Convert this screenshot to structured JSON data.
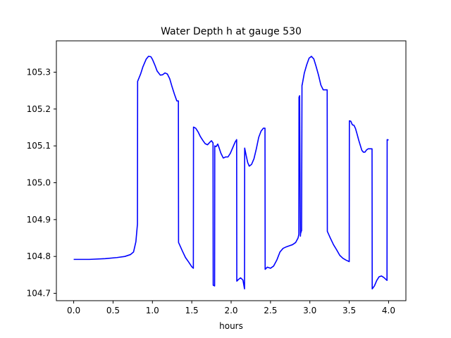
{
  "chart_data": {
    "type": "line",
    "title": "Water Depth h at gauge 530",
    "xlabel": "hours",
    "ylabel": "",
    "xlim": [
      -0.22,
      4.22
    ],
    "ylim": [
      104.68,
      105.385
    ],
    "xticks": [
      0.0,
      0.5,
      1.0,
      1.5,
      2.0,
      2.5,
      3.0,
      3.5,
      4.0
    ],
    "xtick_labels": [
      "0.0",
      "0.5",
      "1.0",
      "1.5",
      "2.0",
      "2.5",
      "3.0",
      "3.5",
      "4.0"
    ],
    "yticks": [
      104.7,
      104.8,
      104.9,
      105.0,
      105.1,
      105.2,
      105.3
    ],
    "ytick_labels": [
      "104.7",
      "104.8",
      "104.9",
      "105.0",
      "105.1",
      "105.2",
      "105.3"
    ],
    "grid": false,
    "series": [
      {
        "color": "#0000ff",
        "x": [
          0.0,
          0.2,
          0.4,
          0.55,
          0.65,
          0.72,
          0.76,
          0.79,
          0.81,
          0.812,
          0.85,
          0.88,
          0.92,
          0.95,
          0.98,
          1.0,
          1.03,
          1.06,
          1.1,
          1.13,
          1.16,
          1.19,
          1.22,
          1.25,
          1.28,
          1.31,
          1.33,
          1.332,
          1.38,
          1.42,
          1.46,
          1.5,
          1.52,
          1.522,
          1.55,
          1.58,
          1.61,
          1.64,
          1.67,
          1.7,
          1.73,
          1.75,
          1.77,
          1.772,
          1.79,
          1.792,
          1.81,
          1.83,
          1.85,
          1.87,
          1.9,
          1.93,
          1.96,
          1.99,
          2.02,
          2.05,
          2.07,
          2.072,
          2.09,
          2.12,
          2.15,
          2.17,
          2.172,
          2.19,
          2.21,
          2.23,
          2.26,
          2.29,
          2.32,
          2.35,
          2.38,
          2.41,
          2.43,
          2.432,
          2.46,
          2.5,
          2.54,
          2.58,
          2.62,
          2.66,
          2.7,
          2.74,
          2.78,
          2.82,
          2.85,
          2.86,
          2.862,
          2.87,
          2.88,
          2.882,
          2.89,
          2.895,
          2.9,
          2.902,
          2.93,
          2.96,
          2.99,
          3.02,
          3.05,
          3.08,
          3.11,
          3.14,
          3.17,
          3.2,
          3.22,
          3.222,
          3.26,
          3.3,
          3.34,
          3.38,
          3.42,
          3.46,
          3.5,
          3.502,
          3.52,
          3.54,
          3.56,
          3.58,
          3.6,
          3.62,
          3.64,
          3.66,
          3.68,
          3.7,
          3.72,
          3.74,
          3.76,
          3.78,
          3.79,
          3.792,
          3.82,
          3.85,
          3.88,
          3.91,
          3.94,
          3.97,
          3.98,
          3.982,
          4.0
        ],
        "y": [
          104.792,
          104.792,
          104.794,
          104.797,
          104.8,
          104.805,
          104.812,
          104.84,
          104.888,
          105.275,
          105.295,
          105.315,
          105.335,
          105.343,
          105.342,
          105.335,
          105.32,
          105.303,
          105.292,
          105.293,
          105.298,
          105.295,
          105.282,
          105.26,
          105.24,
          105.222,
          105.222,
          104.838,
          104.815,
          104.797,
          104.785,
          104.772,
          104.768,
          105.151,
          105.148,
          105.138,
          105.125,
          105.115,
          105.106,
          105.103,
          105.11,
          105.114,
          105.108,
          104.722,
          104.72,
          105.1,
          105.098,
          105.105,
          105.093,
          105.08,
          105.067,
          105.07,
          105.07,
          105.08,
          105.095,
          105.11,
          105.117,
          104.733,
          104.737,
          104.742,
          104.736,
          104.712,
          105.094,
          105.075,
          105.055,
          105.045,
          105.05,
          105.065,
          105.092,
          105.123,
          105.14,
          105.148,
          105.148,
          104.765,
          104.771,
          104.768,
          104.774,
          104.79,
          104.812,
          104.822,
          104.826,
          104.829,
          104.832,
          104.838,
          104.85,
          104.86,
          105.232,
          105.236,
          104.855,
          104.862,
          104.868,
          104.87,
          105.265,
          105.265,
          105.298,
          105.32,
          105.338,
          105.343,
          105.336,
          105.315,
          105.292,
          105.265,
          105.252,
          105.252,
          105.252,
          104.868,
          104.85,
          104.832,
          104.818,
          104.803,
          104.795,
          104.79,
          104.786,
          105.168,
          105.167,
          105.157,
          105.156,
          105.147,
          105.132,
          105.116,
          105.102,
          105.088,
          105.083,
          105.083,
          105.089,
          105.092,
          105.092,
          105.092,
          105.092,
          104.712,
          104.72,
          104.735,
          104.745,
          104.747,
          104.743,
          104.737,
          104.735,
          105.117,
          105.116
        ]
      }
    ]
  }
}
